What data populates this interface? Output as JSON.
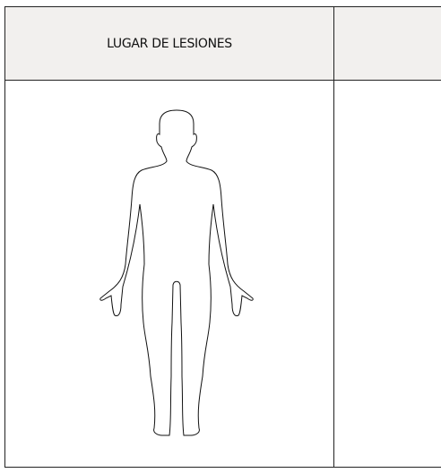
{
  "header": {
    "title": "LUGAR DE LESIONES"
  }
}
